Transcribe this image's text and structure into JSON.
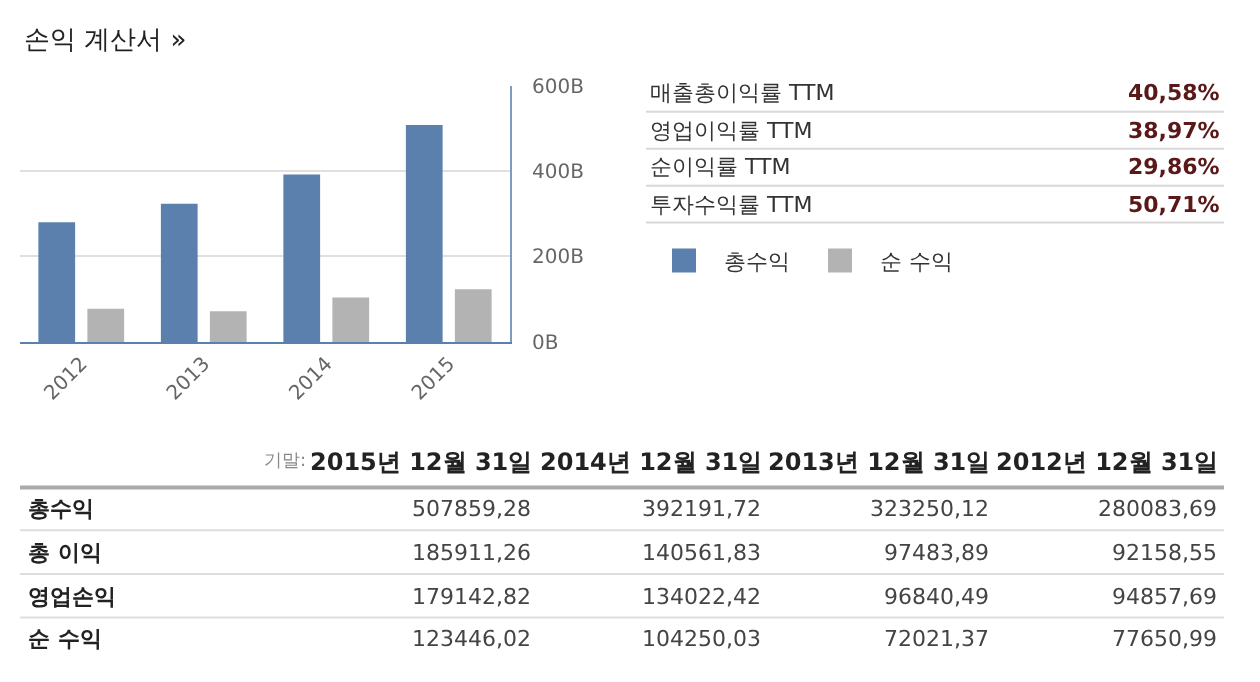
{
  "chart_data": [
    {
      "type": "bar",
      "title": "손익 계산서 »",
      "categories": [
        "2012",
        "2013",
        "2014",
        "2015"
      ],
      "series": [
        {
          "name": "총수익",
          "color": "#5b80ad",
          "values": [
            280.08,
            323.25,
            392.19,
            507.86
          ]
        },
        {
          "name": "순 수익",
          "color": "#b3b3b3",
          "values": [
            77.65,
            72.02,
            104.25,
            123.45
          ]
        }
      ],
      "ylim": [
        0,
        600
      ],
      "yticks": [
        {
          "value": 0,
          "label": "0B"
        },
        {
          "value": 200,
          "label": "200B"
        },
        {
          "value": 400,
          "label": "400B"
        },
        {
          "value": 600,
          "label": "600B"
        }
      ],
      "grid": "y",
      "legend": "right"
    },
    {
      "type": "other",
      "categories": [
        "매출총이익률 TTM",
        "영업이익률 TTM",
        "순이익률 TTM",
        "투자수익률 TTM"
      ],
      "values": [
        40.58,
        38.97,
        29.86,
        50.71
      ],
      "value_labels": [
        "40,58%",
        "38,97%",
        "29,86%",
        "50,71%"
      ]
    },
    {
      "type": "other",
      "xlabel": "기말:",
      "categories": [
        "2015년 12월 31일",
        "2014년 12월 31일",
        "2013년 12월 31일",
        "2012년 12월 31일"
      ],
      "series": [
        {
          "name": "총수익",
          "values": [
            507859.28,
            392191.72,
            323250.12,
            280083.69
          ],
          "value_labels": [
            "507859,28",
            "392191,72",
            "323250,12",
            "280083,69"
          ]
        },
        {
          "name": "총 이익",
          "values": [
            185911.26,
            140561.83,
            97483.89,
            92158.55
          ],
          "value_labels": [
            "185911,26",
            "140561,83",
            "97483,89",
            "92158,55"
          ]
        },
        {
          "name": "영업손익",
          "values": [
            179142.82,
            134022.42,
            96840.49,
            94857.69
          ],
          "value_labels": [
            "179142,82",
            "134022,42",
            "96840,49",
            "94857,69"
          ]
        },
        {
          "name": "순 수익",
          "values": [
            123446.02,
            104250.03,
            72021.37,
            77650.99
          ],
          "value_labels": [
            "123446,02",
            "104250,03",
            "72021,37",
            "77650,99"
          ]
        }
      ]
    }
  ]
}
